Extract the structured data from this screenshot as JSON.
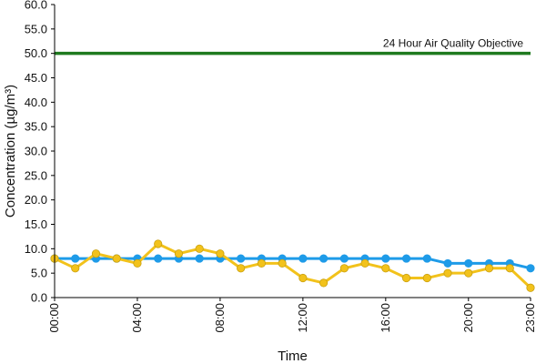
{
  "chart_data": {
    "type": "line",
    "xlabel": "Time",
    "ylabel": "Concentration (µg/m³)",
    "ylim": [
      0,
      60
    ],
    "yticks": [
      "0.0",
      "5.0",
      "10.0",
      "15.0",
      "20.0",
      "25.0",
      "30.0",
      "35.0",
      "40.0",
      "45.0",
      "50.0",
      "55.0",
      "60.0"
    ],
    "xlim": [
      0,
      23
    ],
    "x": [
      0,
      1,
      2,
      3,
      4,
      5,
      6,
      7,
      8,
      9,
      10,
      11,
      12,
      13,
      14,
      15,
      16,
      17,
      18,
      19,
      20,
      21,
      22,
      23
    ],
    "xticks": [
      {
        "x": 0,
        "label": "00:00"
      },
      {
        "x": 4,
        "label": "04:00"
      },
      {
        "x": 8,
        "label": "08:00"
      },
      {
        "x": 12,
        "label": "12:00"
      },
      {
        "x": 16,
        "label": "16:00"
      },
      {
        "x": 20,
        "label": "20:00"
      },
      {
        "x": 23,
        "label": "23:00"
      }
    ],
    "grid": false,
    "legend": "none",
    "series": [
      {
        "color": "#1e9be8",
        "values": [
          8,
          8,
          8,
          8,
          8,
          8,
          8,
          8,
          8,
          8,
          8,
          8,
          8,
          8,
          8,
          8,
          8,
          8,
          8,
          7,
          7,
          7,
          7,
          6
        ]
      },
      {
        "color": "#f2c21b",
        "values": [
          8,
          6,
          9,
          8,
          7,
          11,
          9,
          10,
          9,
          6,
          7,
          7,
          4,
          3,
          6,
          7,
          6,
          4,
          4,
          5,
          5,
          6,
          6,
          2
        ]
      }
    ],
    "reference_line": {
      "y": 50,
      "label": "24 Hour Air Quality Objective",
      "color": "#1f7a1f"
    }
  }
}
